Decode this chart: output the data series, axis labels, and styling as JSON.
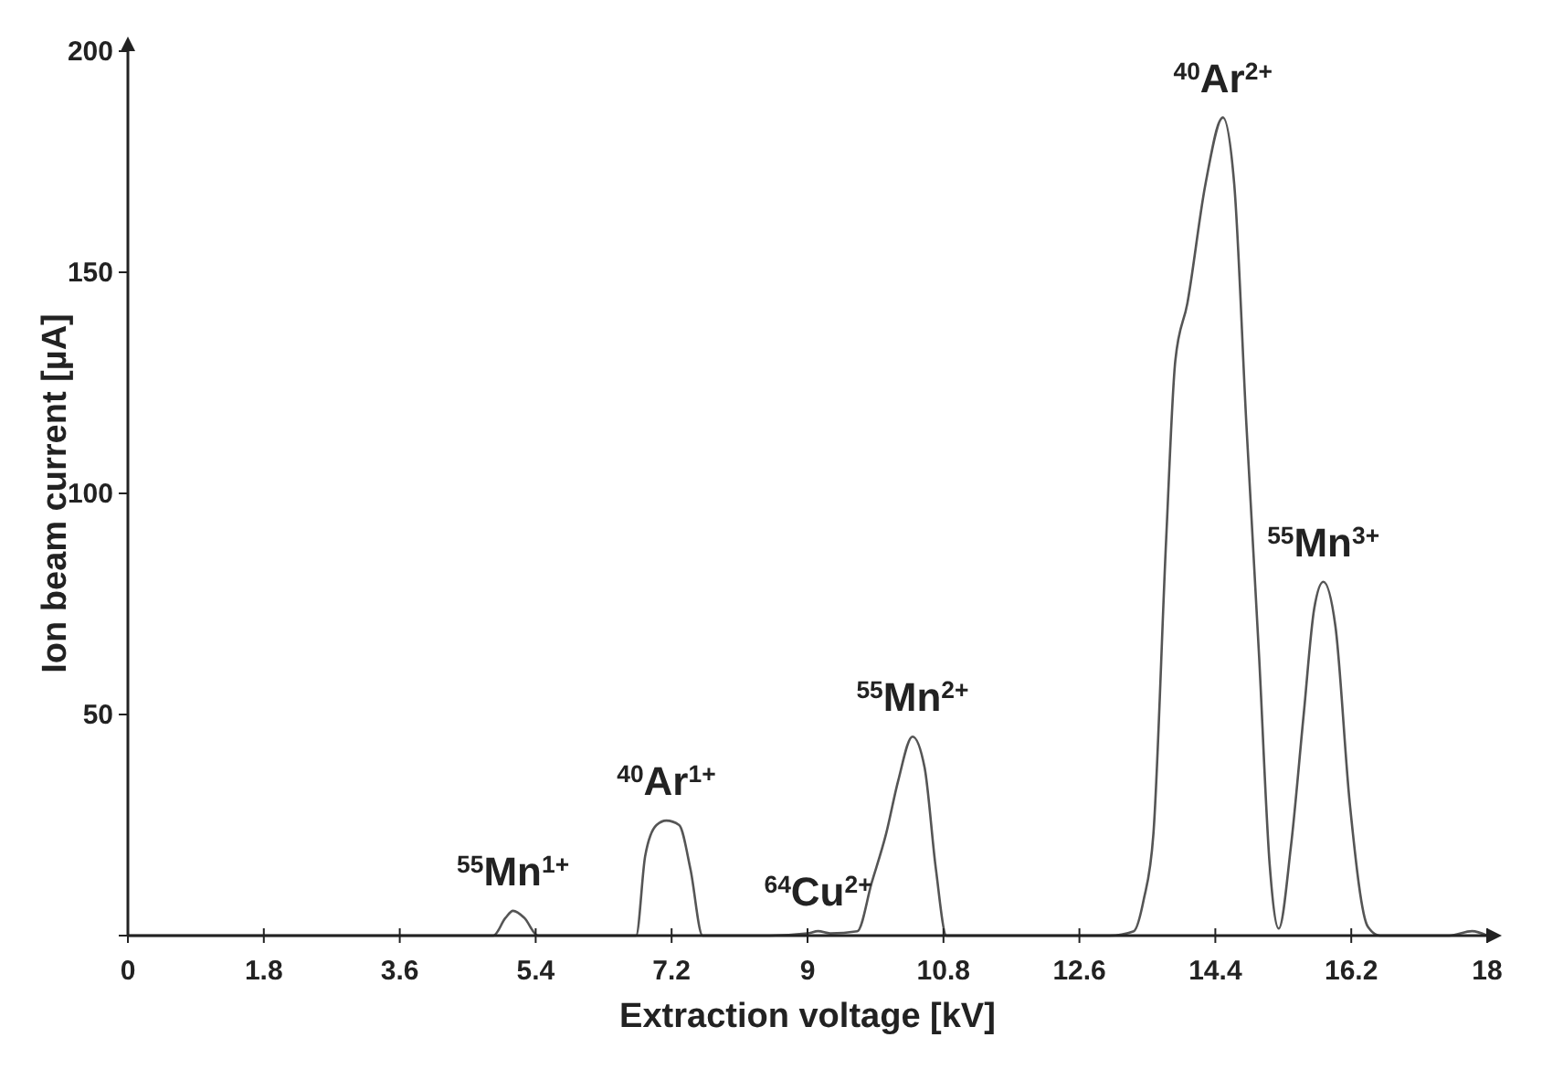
{
  "chart_data": {
    "type": "line",
    "xlabel": "Extraction voltage [kV]",
    "ylabel": "Ion beam current [µA]",
    "xlim": [
      0,
      18
    ],
    "ylim": [
      0,
      200
    ],
    "xticks": [
      0,
      1.8,
      3.6,
      5.4,
      7.2,
      9,
      10.8,
      12.6,
      14.4,
      16.2,
      18
    ],
    "yticks": [
      {
        "value": 0,
        "label": null
      },
      50,
      100,
      150,
      200
    ],
    "grid": false,
    "marker": "none",
    "line_style": "solid",
    "series": [
      {
        "color": "#555555",
        "x": [
          0,
          2,
          4,
          4.84,
          5.0,
          5.1,
          5.25,
          5.43,
          6,
          6.73,
          6.85,
          7.0,
          7.13,
          7.3,
          7.45,
          7.61,
          8.5,
          9.0,
          9.14,
          9.3,
          9.66,
          9.85,
          10.04,
          10.2,
          10.39,
          10.55,
          10.7,
          10.84,
          12,
          13.0,
          13.32,
          13.45,
          13.58,
          13.75,
          13.87,
          14.03,
          14.27,
          14.5,
          14.65,
          14.81,
          14.98,
          15.12,
          15.24,
          15.4,
          15.57,
          15.71,
          15.83,
          15.99,
          16.18,
          16.42,
          16.58,
          17.5,
          17.8,
          18
        ],
        "values": [
          0,
          0,
          0,
          0,
          4,
          5.6,
          4,
          0,
          0,
          0,
          18,
          25,
          26,
          25,
          15,
          0,
          0,
          0.5,
          1,
          0.5,
          1,
          12,
          23,
          35,
          45,
          38,
          15,
          0,
          0,
          0,
          1,
          8,
          23,
          90,
          130,
          143,
          170,
          185,
          170,
          116,
          63,
          16,
          1.6,
          20,
          50,
          74,
          80,
          70,
          30,
          2,
          0,
          0,
          1,
          0
        ]
      }
    ],
    "annotations": [
      {
        "text": "$^{55}$Mn$^{1+}$",
        "x": 5.1,
        "y": 5.6
      },
      {
        "text": "$^{40}$Ar$^{1+}$",
        "x": 7.13,
        "y": 26
      },
      {
        "text": "$^{64}$Cu$^{2+}$",
        "x": 9.14,
        "y": 1
      },
      {
        "text": "$^{55}$Mn$^{2+}$",
        "x": 10.39,
        "y": 45
      },
      {
        "text": "$^{40}$Ar$^{2+}$",
        "x": 14.5,
        "y": 185
      },
      {
        "text": "$^{55}$Mn$^{3+}$",
        "x": 15.83,
        "y": 80
      }
    ]
  }
}
